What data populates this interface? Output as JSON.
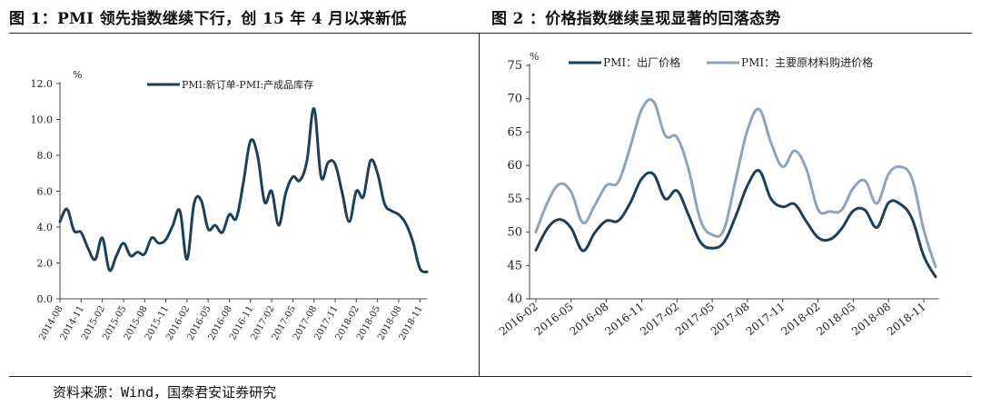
{
  "header_left": "图 1：PMI 领先指数继续下行，创 15 年 4 月以来新低",
  "header_right": "图 2 ：价格指数继续呈现显著的回落态势",
  "source": "资料来源：Wind，国泰君安证券研究",
  "chart_data": [
    {
      "type": "line",
      "ylabel": "%",
      "ylim": [
        0,
        12
      ],
      "yticks": [
        "0.0",
        "2.0",
        "4.0",
        "6.0",
        "8.0",
        "10.0",
        "12.0"
      ],
      "xticks": [
        "2014-08",
        "2014-11",
        "2015-02",
        "2015-05",
        "2015-08",
        "2015-11",
        "2016-02",
        "2016-05",
        "2016-08",
        "2016-11",
        "2017-02",
        "2017-05",
        "2017-08",
        "2017-11",
        "2018-02",
        "2018-05",
        "2018-08",
        "2018-11"
      ],
      "series": [
        {
          "name": "PMI:新订单-PMI:产成品库存",
          "color": "#1f3f55",
          "x": [
            "2014-08",
            "2014-09",
            "2014-10",
            "2014-11",
            "2014-12",
            "2015-01",
            "2015-02",
            "2015-03",
            "2015-04",
            "2015-05",
            "2015-06",
            "2015-07",
            "2015-08",
            "2015-09",
            "2015-10",
            "2015-11",
            "2015-12",
            "2016-01",
            "2016-02",
            "2016-03",
            "2016-04",
            "2016-05",
            "2016-06",
            "2016-07",
            "2016-08",
            "2016-09",
            "2016-10",
            "2016-11",
            "2016-12",
            "2017-01",
            "2017-02",
            "2017-03",
            "2017-04",
            "2017-05",
            "2017-06",
            "2017-07",
            "2017-08",
            "2017-09",
            "2017-10",
            "2017-11",
            "2017-12",
            "2018-01",
            "2018-02",
            "2018-03",
            "2018-04",
            "2018-05",
            "2018-06",
            "2018-07",
            "2018-08",
            "2018-09",
            "2018-10",
            "2018-11",
            "2018-12"
          ],
          "values": [
            4.3,
            5.0,
            3.8,
            3.7,
            2.8,
            2.2,
            3.4,
            1.6,
            2.4,
            3.1,
            2.4,
            2.6,
            2.5,
            3.4,
            3.1,
            3.3,
            4.1,
            4.9,
            2.2,
            5.3,
            5.5,
            3.9,
            4.1,
            3.7,
            4.7,
            4.5,
            6.5,
            8.8,
            8.0,
            5.4,
            6.0,
            4.1,
            5.9,
            6.8,
            6.6,
            7.7,
            10.6,
            6.8,
            7.6,
            7.5,
            5.9,
            4.3,
            6.0,
            5.7,
            7.7,
            7.0,
            5.3,
            4.9,
            4.7,
            4.2,
            3.2,
            1.7,
            1.5
          ]
        }
      ]
    },
    {
      "type": "line",
      "ylabel": "%",
      "ylim": [
        40,
        75
      ],
      "yticks": [
        "40",
        "45",
        "50",
        "55",
        "60",
        "65",
        "70",
        "75"
      ],
      "xticks": [
        "2016-02",
        "2016-05",
        "2016-08",
        "2016-11",
        "2017-02",
        "2017-05",
        "2017-08",
        "2017-11",
        "2018-02",
        "2018-05",
        "2018-08",
        "2018-11"
      ],
      "x": [
        "2016-02",
        "2016-03",
        "2016-04",
        "2016-05",
        "2016-06",
        "2016-07",
        "2016-08",
        "2016-09",
        "2016-10",
        "2016-11",
        "2016-12",
        "2017-01",
        "2017-02",
        "2017-03",
        "2017-04",
        "2017-05",
        "2017-06",
        "2017-07",
        "2017-08",
        "2017-09",
        "2017-10",
        "2017-11",
        "2017-12",
        "2018-01",
        "2018-02",
        "2018-03",
        "2018-04",
        "2018-05",
        "2018-06",
        "2018-07",
        "2018-08",
        "2018-09",
        "2018-10",
        "2018-11",
        "2018-12"
      ],
      "series": [
        {
          "name": "PMI：出厂价格",
          "color": "#1f3f55",
          "values": [
            47.3,
            50.6,
            51.9,
            50.6,
            47.2,
            49.9,
            51.7,
            51.7,
            54.3,
            58.0,
            58.7,
            55.0,
            56.2,
            52.5,
            48.5,
            47.6,
            48.5,
            52.4,
            57.0,
            59.2,
            55.0,
            53.8,
            54.2,
            51.6,
            49.2,
            48.9,
            50.5,
            53.2,
            53.3,
            50.7,
            54.4,
            54.2,
            52.0,
            46.4,
            43.3
          ]
        },
        {
          "name": "PMI：主要原材料购进价格",
          "color": "#8fa4b8",
          "values": [
            50.0,
            54.5,
            57.2,
            56.0,
            51.4,
            54.0,
            57.0,
            57.5,
            62.6,
            68.4,
            69.6,
            64.5,
            64.2,
            59.3,
            51.8,
            49.6,
            50.4,
            57.9,
            65.3,
            68.4,
            63.4,
            59.8,
            62.2,
            59.5,
            53.4,
            53.1,
            53.3,
            56.6,
            57.7,
            54.3,
            58.7,
            59.8,
            58.0,
            50.3,
            44.8
          ]
        }
      ]
    }
  ]
}
